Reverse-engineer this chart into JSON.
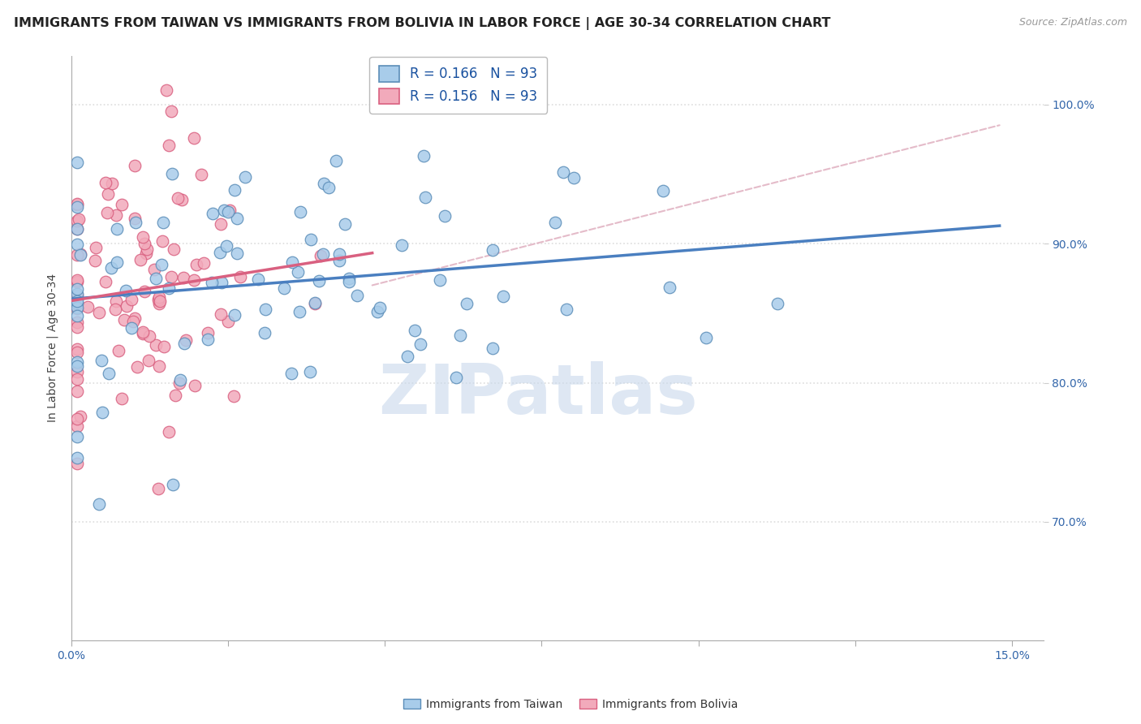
{
  "title": "IMMIGRANTS FROM TAIWAN VS IMMIGRANTS FROM BOLIVIA IN LABOR FORCE | AGE 30-34 CORRELATION CHART",
  "source": "Source: ZipAtlas.com",
  "ylabel": "In Labor Force | Age 30-34",
  "xlim": [
    0.0,
    0.155
  ],
  "ylim": [
    0.615,
    1.035
  ],
  "ytick_positions": [
    0.7,
    0.8,
    0.9,
    1.0
  ],
  "ytick_labels": [
    "70.0%",
    "80.0%",
    "90.0%",
    "100.0%"
  ],
  "xtick_positions": [
    0.0,
    0.025,
    0.05,
    0.075,
    0.1,
    0.125,
    0.15
  ],
  "color_taiwan": "#A8CCEA",
  "color_taiwan_edge": "#5B8DB8",
  "color_bolivia": "#F2AABB",
  "color_bolivia_edge": "#D96080",
  "color_taiwan_line": "#4A7FC0",
  "color_bolivia_line": "#D96080",
  "color_dashed": "#E0B0C0",
  "R_taiwan": 0.166,
  "R_bolivia": 0.156,
  "N": 93,
  "background_color": "#FFFFFF",
  "grid_color": "#DDDDDD",
  "title_fontsize": 11.5,
  "axis_label_fontsize": 10,
  "tick_fontsize": 10,
  "watermark": "ZIPatlas",
  "watermark_color": "#C8D8EC",
  "bottom_legend_taiwan": "Immigrants from Taiwan",
  "bottom_legend_bolivia": "Immigrants from Bolivia",
  "legend_r_color": "#1A52A0",
  "legend_n_color": "#CC2244"
}
